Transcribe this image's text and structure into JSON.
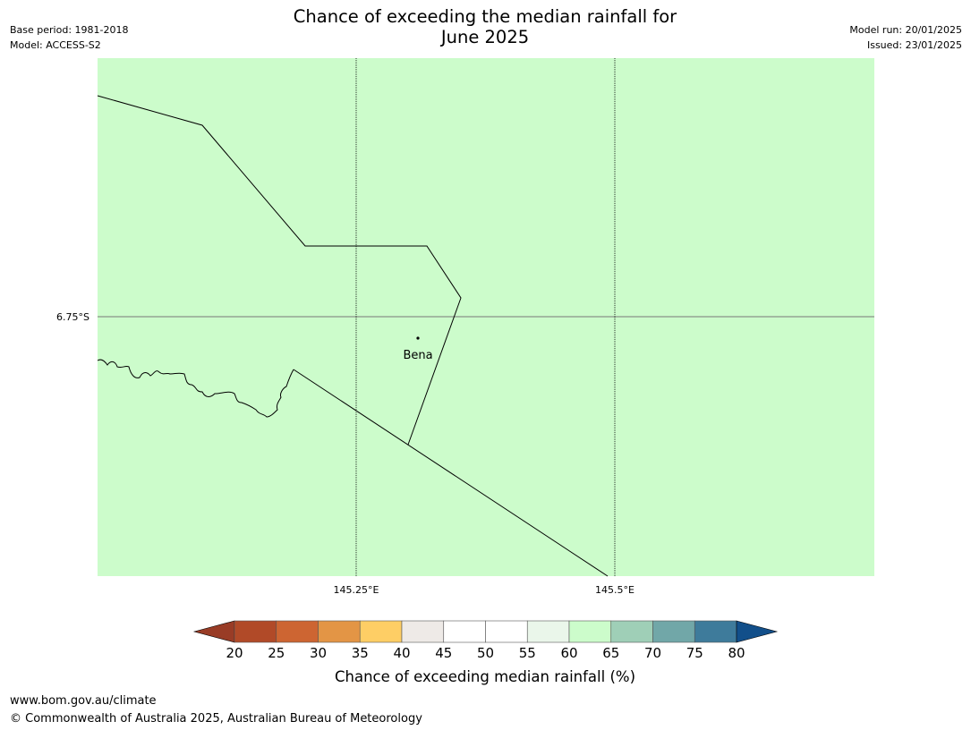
{
  "header": {
    "title_line1": "Chance of exceeding the median rainfall for",
    "title_line2": "June 2025",
    "base_period": "Base period: 1981-2018",
    "model": "Model: ACCESS-S2",
    "model_run": "Model run: 20/01/2025",
    "issued": "Issued: 23/01/2025"
  },
  "map": {
    "fill_color": "#ccfccb",
    "lat_labels": [
      "6.75°S"
    ],
    "lon_labels": [
      "145.25°E",
      "145.5°E"
    ],
    "place": {
      "name": "Bena"
    }
  },
  "legend": {
    "label": "Chance of exceeding median rainfall (%)",
    "ticks": [
      "20",
      "25",
      "30",
      "35",
      "40",
      "45",
      "50",
      "55",
      "60",
      "65",
      "70",
      "75",
      "80"
    ],
    "colors": [
      "#b14a28",
      "#cd6532",
      "#e39545",
      "#fece65",
      "#eeeae7",
      "#ffffff",
      "#ffffff",
      "#eaf6ea",
      "#ccfccb",
      "#9fcfb7",
      "#71a7a8",
      "#3e7b9b"
    ],
    "under_color": "#993c26",
    "over_color": "#124f8a"
  },
  "footer": {
    "url": "www.bom.gov.au/climate",
    "copyright": "© Commonwealth of Australia 2025, Australian Bureau of Meteorology"
  }
}
